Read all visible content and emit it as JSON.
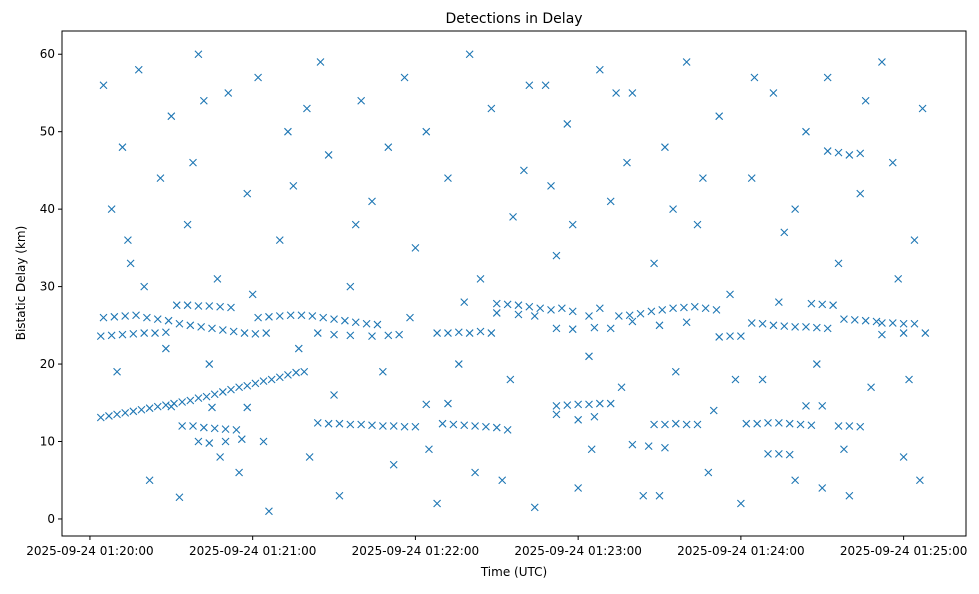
{
  "chart_data": {
    "type": "scatter",
    "title": "Detections in Delay",
    "xlabel": "Time (UTC)",
    "ylabel": "Bistatic Delay (km)",
    "x_units": "seconds after 2025-09-24 01:20:00",
    "xlim": [
      -10.3,
      323
    ],
    "ylim": [
      -2.2,
      63
    ],
    "xticks": [
      {
        "value": 0,
        "label": "2025-09-24 01:20:00"
      },
      {
        "value": 60,
        "label": "2025-09-24 01:21:00"
      },
      {
        "value": 120,
        "label": "2025-09-24 01:22:00"
      },
      {
        "value": 180,
        "label": "2025-09-24 01:23:00"
      },
      {
        "value": 240,
        "label": "2025-09-24 01:24:00"
      },
      {
        "value": 300,
        "label": "2025-09-24 01:25:00"
      }
    ],
    "yticks": [
      0,
      10,
      20,
      30,
      40,
      50,
      60
    ],
    "marker": "x",
    "color": "#1f77b4",
    "grid": false,
    "points": [
      [
        4,
        13.1
      ],
      [
        7,
        13.3
      ],
      [
        10,
        13.5
      ],
      [
        13,
        13.7
      ],
      [
        16,
        13.9
      ],
      [
        19,
        14.1
      ],
      [
        22,
        14.3
      ],
      [
        25,
        14.5
      ],
      [
        28,
        14.7
      ],
      [
        31,
        14.9
      ],
      [
        34,
        15.1
      ],
      [
        37,
        15.3
      ],
      [
        40,
        15.6
      ],
      [
        43,
        15.8
      ],
      [
        46,
        16.1
      ],
      [
        49,
        16.4
      ],
      [
        52,
        16.7
      ],
      [
        55,
        17
      ],
      [
        58,
        17.2
      ],
      [
        61,
        17.5
      ],
      [
        64,
        17.8
      ],
      [
        67,
        18
      ],
      [
        70,
        18.3
      ],
      [
        73,
        18.6
      ],
      [
        76,
        18.9
      ],
      [
        79,
        19
      ],
      [
        4,
        23.6
      ],
      [
        8,
        23.7
      ],
      [
        12,
        23.8
      ],
      [
        16,
        23.9
      ],
      [
        20,
        24
      ],
      [
        24,
        24
      ],
      [
        28,
        24.1
      ],
      [
        5,
        26
      ],
      [
        9,
        26.1
      ],
      [
        13,
        26.2
      ],
      [
        17,
        26.3
      ],
      [
        21,
        26
      ],
      [
        25,
        25.8
      ],
      [
        29,
        25.6
      ],
      [
        32,
        27.6
      ],
      [
        36,
        27.6
      ],
      [
        40,
        27.5
      ],
      [
        44,
        27.5
      ],
      [
        48,
        27.4
      ],
      [
        52,
        27.3
      ],
      [
        33,
        25.2
      ],
      [
        37,
        25
      ],
      [
        41,
        24.8
      ],
      [
        45,
        24.6
      ],
      [
        49,
        24.4
      ],
      [
        53,
        24.2
      ],
      [
        57,
        24
      ],
      [
        61,
        23.9
      ],
      [
        65,
        24
      ],
      [
        62,
        26
      ],
      [
        66,
        26.1
      ],
      [
        70,
        26.2
      ],
      [
        74,
        26.3
      ],
      [
        78,
        26.3
      ],
      [
        82,
        26.2
      ],
      [
        86,
        26
      ],
      [
        90,
        25.8
      ],
      [
        94,
        25.6
      ],
      [
        98,
        25.4
      ],
      [
        102,
        25.2
      ],
      [
        106,
        25.1
      ],
      [
        84,
        24
      ],
      [
        90,
        23.8
      ],
      [
        96,
        23.7
      ],
      [
        104,
        23.6
      ],
      [
        110,
        23.7
      ],
      [
        114,
        23.8
      ],
      [
        84,
        12.4
      ],
      [
        88,
        12.3
      ],
      [
        92,
        12.3
      ],
      [
        96,
        12.2
      ],
      [
        100,
        12.2
      ],
      [
        104,
        12.1
      ],
      [
        108,
        12
      ],
      [
        112,
        12
      ],
      [
        116,
        11.9
      ],
      [
        120,
        11.9
      ],
      [
        34,
        12
      ],
      [
        38,
        12
      ],
      [
        42,
        11.8
      ],
      [
        46,
        11.7
      ],
      [
        50,
        11.6
      ],
      [
        54,
        11.5
      ],
      [
        40,
        10
      ],
      [
        44,
        9.8
      ],
      [
        50,
        10
      ],
      [
        56,
        10.3
      ],
      [
        30,
        14.5
      ],
      [
        45,
        14.4
      ],
      [
        58,
        14.4
      ],
      [
        128,
        24
      ],
      [
        132,
        24
      ],
      [
        136,
        24.1
      ],
      [
        140,
        24
      ],
      [
        144,
        24.2
      ],
      [
        148,
        24
      ],
      [
        130,
        12.3
      ],
      [
        134,
        12.2
      ],
      [
        138,
        12.1
      ],
      [
        142,
        12
      ],
      [
        146,
        11.9
      ],
      [
        150,
        11.8
      ],
      [
        154,
        11.5
      ],
      [
        124,
        14.8
      ],
      [
        132,
        14.9
      ],
      [
        150,
        27.8
      ],
      [
        154,
        27.7
      ],
      [
        158,
        27.6
      ],
      [
        162,
        27.4
      ],
      [
        166,
        27.2
      ],
      [
        150,
        26.6
      ],
      [
        158,
        26.4
      ],
      [
        164,
        26.2
      ],
      [
        170,
        27
      ],
      [
        174,
        27.2
      ],
      [
        178,
        26.8
      ],
      [
        184,
        26.2
      ],
      [
        188,
        27.2
      ],
      [
        172,
        14.6
      ],
      [
        176,
        14.7
      ],
      [
        180,
        14.8
      ],
      [
        184,
        14.8
      ],
      [
        188,
        14.9
      ],
      [
        192,
        14.9
      ],
      [
        172,
        13.5
      ],
      [
        180,
        12.8
      ],
      [
        186,
        13.2
      ],
      [
        172,
        24.6
      ],
      [
        178,
        24.5
      ],
      [
        186,
        24.7
      ],
      [
        192,
        24.6
      ],
      [
        195,
        26.2
      ],
      [
        199,
        26.3
      ],
      [
        203,
        26.5
      ],
      [
        207,
        26.8
      ],
      [
        211,
        27
      ],
      [
        215,
        27.2
      ],
      [
        219,
        27.3
      ],
      [
        223,
        27.4
      ],
      [
        227,
        27.2
      ],
      [
        231,
        27
      ],
      [
        200,
        25.5
      ],
      [
        210,
        25
      ],
      [
        220,
        25.4
      ],
      [
        200,
        9.6
      ],
      [
        206,
        9.4
      ],
      [
        212,
        9.2
      ],
      [
        208,
        12.2
      ],
      [
        212,
        12.2
      ],
      [
        216,
        12.3
      ],
      [
        220,
        12.2
      ],
      [
        224,
        12.2
      ],
      [
        242,
        12.3
      ],
      [
        246,
        12.3
      ],
      [
        250,
        12.4
      ],
      [
        254,
        12.4
      ],
      [
        258,
        12.3
      ],
      [
        262,
        12.2
      ],
      [
        266,
        12.1
      ],
      [
        232,
        23.5
      ],
      [
        236,
        23.6
      ],
      [
        240,
        23.6
      ],
      [
        244,
        25.3
      ],
      [
        248,
        25.2
      ],
      [
        252,
        25
      ],
      [
        256,
        24.9
      ],
      [
        260,
        24.8
      ],
      [
        264,
        24.8
      ],
      [
        268,
        24.7
      ],
      [
        272,
        24.6
      ],
      [
        250,
        8.4
      ],
      [
        254,
        8.4
      ],
      [
        258,
        8.3
      ],
      [
        266,
        27.8
      ],
      [
        270,
        27.7
      ],
      [
        274,
        27.6
      ],
      [
        278,
        25.8
      ],
      [
        282,
        25.7
      ],
      [
        286,
        25.6
      ],
      [
        290,
        25.5
      ],
      [
        264,
        14.6
      ],
      [
        270,
        14.6
      ],
      [
        276,
        12
      ],
      [
        280,
        12
      ],
      [
        284,
        11.9
      ],
      [
        292,
        25.3
      ],
      [
        296,
        25.3
      ],
      [
        300,
        25.2
      ],
      [
        304,
        25.2
      ],
      [
        292,
        23.8
      ],
      [
        300,
        24
      ],
      [
        308,
        24
      ],
      [
        272,
        47.5
      ],
      [
        276,
        47.3
      ],
      [
        280,
        47
      ],
      [
        284,
        47.2
      ],
      [
        5,
        56
      ],
      [
        8,
        40
      ],
      [
        12,
        48
      ],
      [
        15,
        33
      ],
      [
        18,
        58
      ],
      [
        22,
        5
      ],
      [
        26,
        44
      ],
      [
        30,
        52
      ],
      [
        33,
        2.8
      ],
      [
        36,
        38
      ],
      [
        40,
        60
      ],
      [
        44,
        20
      ],
      [
        47,
        31
      ],
      [
        51,
        55
      ],
      [
        55,
        6
      ],
      [
        58,
        42
      ],
      [
        62,
        57
      ],
      [
        66,
        1
      ],
      [
        70,
        36
      ],
      [
        73,
        50
      ],
      [
        77,
        22
      ],
      [
        81,
        8
      ],
      [
        85,
        59
      ],
      [
        88,
        47
      ],
      [
        92,
        3
      ],
      [
        96,
        30
      ],
      [
        100,
        54
      ],
      [
        104,
        41
      ],
      [
        108,
        19
      ],
      [
        112,
        7
      ],
      [
        116,
        57
      ],
      [
        120,
        35
      ],
      [
        124,
        50
      ],
      [
        128,
        2
      ],
      [
        132,
        44
      ],
      [
        136,
        20
      ],
      [
        140,
        60
      ],
      [
        144,
        31
      ],
      [
        148,
        53
      ],
      [
        152,
        5
      ],
      [
        156,
        39
      ],
      [
        160,
        45
      ],
      [
        164,
        1.5
      ],
      [
        168,
        56
      ],
      [
        172,
        34
      ],
      [
        176,
        51
      ],
      [
        180,
        4
      ],
      [
        184,
        21
      ],
      [
        188,
        58
      ],
      [
        192,
        41
      ],
      [
        196,
        17
      ],
      [
        200,
        55
      ],
      [
        204,
        3
      ],
      [
        208,
        33
      ],
      [
        212,
        48
      ],
      [
        216,
        19
      ],
      [
        220,
        59
      ],
      [
        224,
        38
      ],
      [
        228,
        6
      ],
      [
        232,
        52
      ],
      [
        236,
        29
      ],
      [
        240,
        2
      ],
      [
        244,
        44
      ],
      [
        248,
        18
      ],
      [
        252,
        55
      ],
      [
        256,
        37
      ],
      [
        260,
        5
      ],
      [
        264,
        50
      ],
      [
        268,
        20
      ],
      [
        272,
        57
      ],
      [
        276,
        33
      ],
      [
        280,
        3
      ],
      [
        284,
        42
      ],
      [
        288,
        17
      ],
      [
        292,
        59
      ],
      [
        296,
        46
      ],
      [
        300,
        8
      ],
      [
        304,
        36
      ],
      [
        307,
        53
      ],
      [
        10,
        19
      ],
      [
        20,
        30
      ],
      [
        38,
        46
      ],
      [
        48,
        8
      ],
      [
        60,
        29
      ],
      [
        75,
        43
      ],
      [
        90,
        16
      ],
      [
        110,
        48
      ],
      [
        125,
        9
      ],
      [
        138,
        28
      ],
      [
        155,
        18
      ],
      [
        170,
        43
      ],
      [
        185,
        9
      ],
      [
        198,
        46
      ],
      [
        215,
        40
      ],
      [
        230,
        14
      ],
      [
        245,
        57
      ],
      [
        260,
        40
      ],
      [
        278,
        9
      ],
      [
        298,
        31
      ],
      [
        306,
        5
      ],
      [
        14,
        36
      ],
      [
        28,
        22
      ],
      [
        42,
        54
      ],
      [
        64,
        10
      ],
      [
        80,
        53
      ],
      [
        98,
        38
      ],
      [
        118,
        26
      ],
      [
        142,
        6
      ],
      [
        162,
        56
      ],
      [
        178,
        38
      ],
      [
        194,
        55
      ],
      [
        210,
        3
      ],
      [
        226,
        44
      ],
      [
        238,
        18
      ],
      [
        254,
        28
      ],
      [
        270,
        4
      ],
      [
        286,
        54
      ],
      [
        302,
        18
      ]
    ]
  }
}
